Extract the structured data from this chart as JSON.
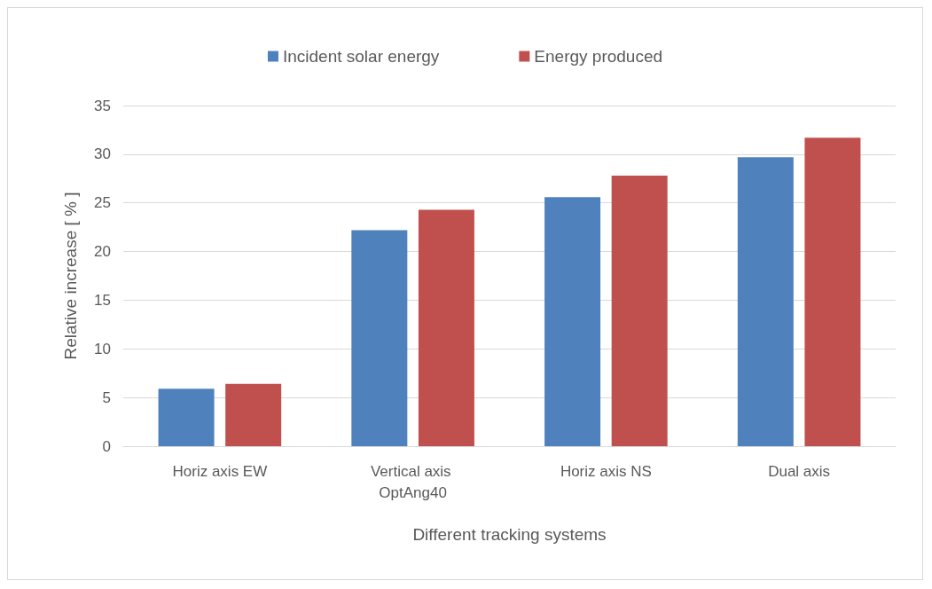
{
  "chart_data": {
    "type": "bar",
    "xlabel": "Different tracking systems",
    "ylabel": "Relative increase [ % ]",
    "categories": [
      "Horiz axis EW",
      "Vertical axis OptAng40",
      "Horiz axis NS",
      "Dual axis"
    ],
    "series": [
      {
        "name": "Incident solar energy",
        "color": "#4f81bd",
        "values": [
          5.9,
          22.2,
          25.6,
          29.7
        ]
      },
      {
        "name": "Energy produced",
        "color": "#c0504d",
        "values": [
          6.4,
          24.3,
          27.8,
          31.7
        ]
      }
    ],
    "ylim": [
      0,
      35
    ],
    "yticks": [
      0,
      5,
      10,
      15,
      20,
      25,
      30,
      35
    ],
    "grid": "y",
    "legend": "top"
  }
}
